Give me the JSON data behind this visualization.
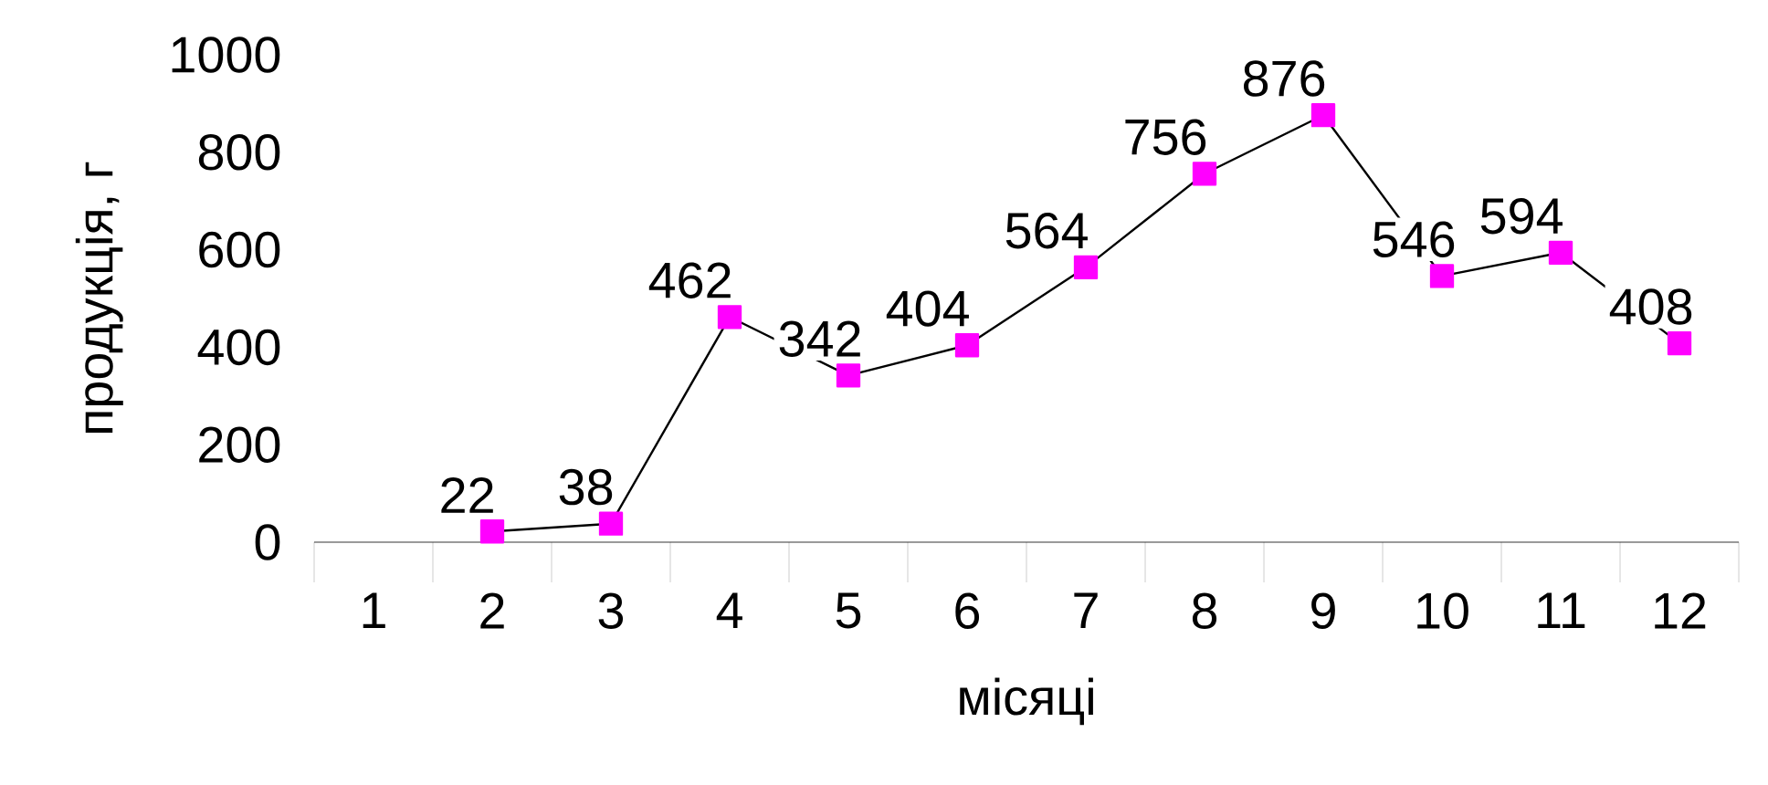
{
  "chart_data": {
    "type": "line",
    "xlabel": "місяці",
    "ylabel": "продукція, г",
    "categories": [
      "1",
      "2",
      "3",
      "4",
      "5",
      "6",
      "7",
      "8",
      "9",
      "10",
      "11",
      "12"
    ],
    "values": [
      null,
      22,
      38,
      462,
      342,
      404,
      564,
      756,
      876,
      546,
      594,
      408
    ],
    "color": "#ff00ff",
    "marker": "square",
    "line_style": "solid",
    "data_labels": true,
    "ylim": [
      0,
      1000
    ],
    "yticks": [
      0,
      200,
      400,
      600,
      800,
      1000
    ]
  }
}
